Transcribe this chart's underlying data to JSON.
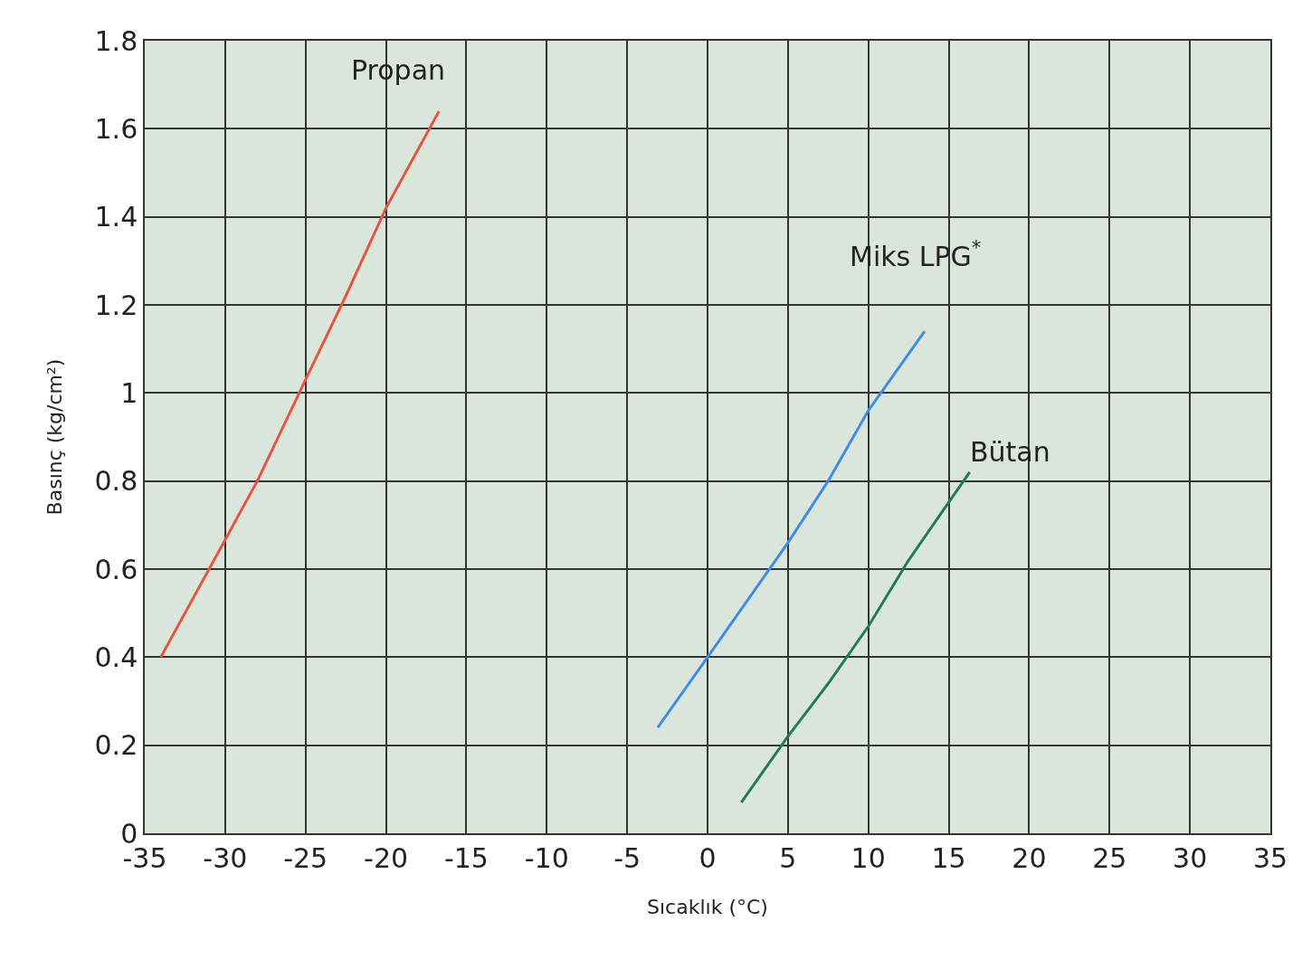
{
  "chart_data": {
    "type": "line",
    "xlabel": "Sıcaklık (°C)",
    "ylabel": "Basınç (kg/cm²)",
    "xlim": [
      -35,
      35
    ],
    "xticks": [
      -35,
      -30,
      -25,
      -20,
      -15,
      -10,
      -5,
      0,
      5,
      10,
      15,
      20,
      25,
      30,
      35
    ],
    "ylim": [
      0,
      1.8
    ],
    "yticks": [
      0,
      0.2,
      0.4,
      0.6,
      0.8,
      1,
      1.2,
      1.4,
      1.6,
      1.8
    ],
    "grid": true,
    "legend": false,
    "marker": "none",
    "line_style": "solid",
    "series": [
      {
        "name": "Propan",
        "color": "#e8553f",
        "x": [
          -34,
          -31,
          -28,
          -25,
          -22.5,
          -20,
          -16.7
        ],
        "values": [
          0.4,
          0.6,
          0.8,
          1.03,
          1.22,
          1.42,
          1.64
        ]
      },
      {
        "name": "Miks LPG$^{*}$",
        "color": "#3f8ce8",
        "x": [
          -3.1,
          0,
          2.5,
          5,
          7.5,
          10,
          13.5
        ],
        "values": [
          0.24,
          0.4,
          0.53,
          0.66,
          0.8,
          0.96,
          1.14
        ]
      },
      {
        "name": "Bütan",
        "color": "#1f7a5a",
        "x": [
          2.1,
          5,
          7.5,
          10,
          12.5,
          16.3
        ],
        "values": [
          0.07,
          0.22,
          0.34,
          0.47,
          0.62,
          0.82
        ]
      }
    ]
  }
}
